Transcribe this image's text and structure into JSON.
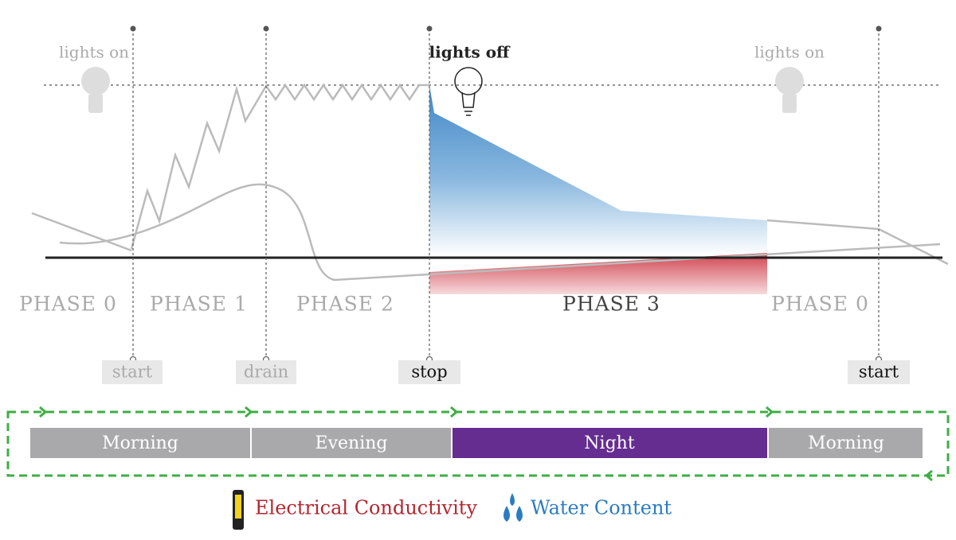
{
  "lights": [
    "lights on",
    "lights off",
    "lights on"
  ],
  "phases": [
    "PHASE 0",
    "PHASE 1",
    "PHASE 2",
    "PHASE 3",
    "PHASE 0"
  ],
  "events": [
    "start",
    "drain",
    "stop",
    "start"
  ],
  "periods": [
    "Morning",
    "Evening",
    "Night",
    "Morning"
  ],
  "legend": [
    "Electrical Conductivity",
    "Water Content"
  ]
}
